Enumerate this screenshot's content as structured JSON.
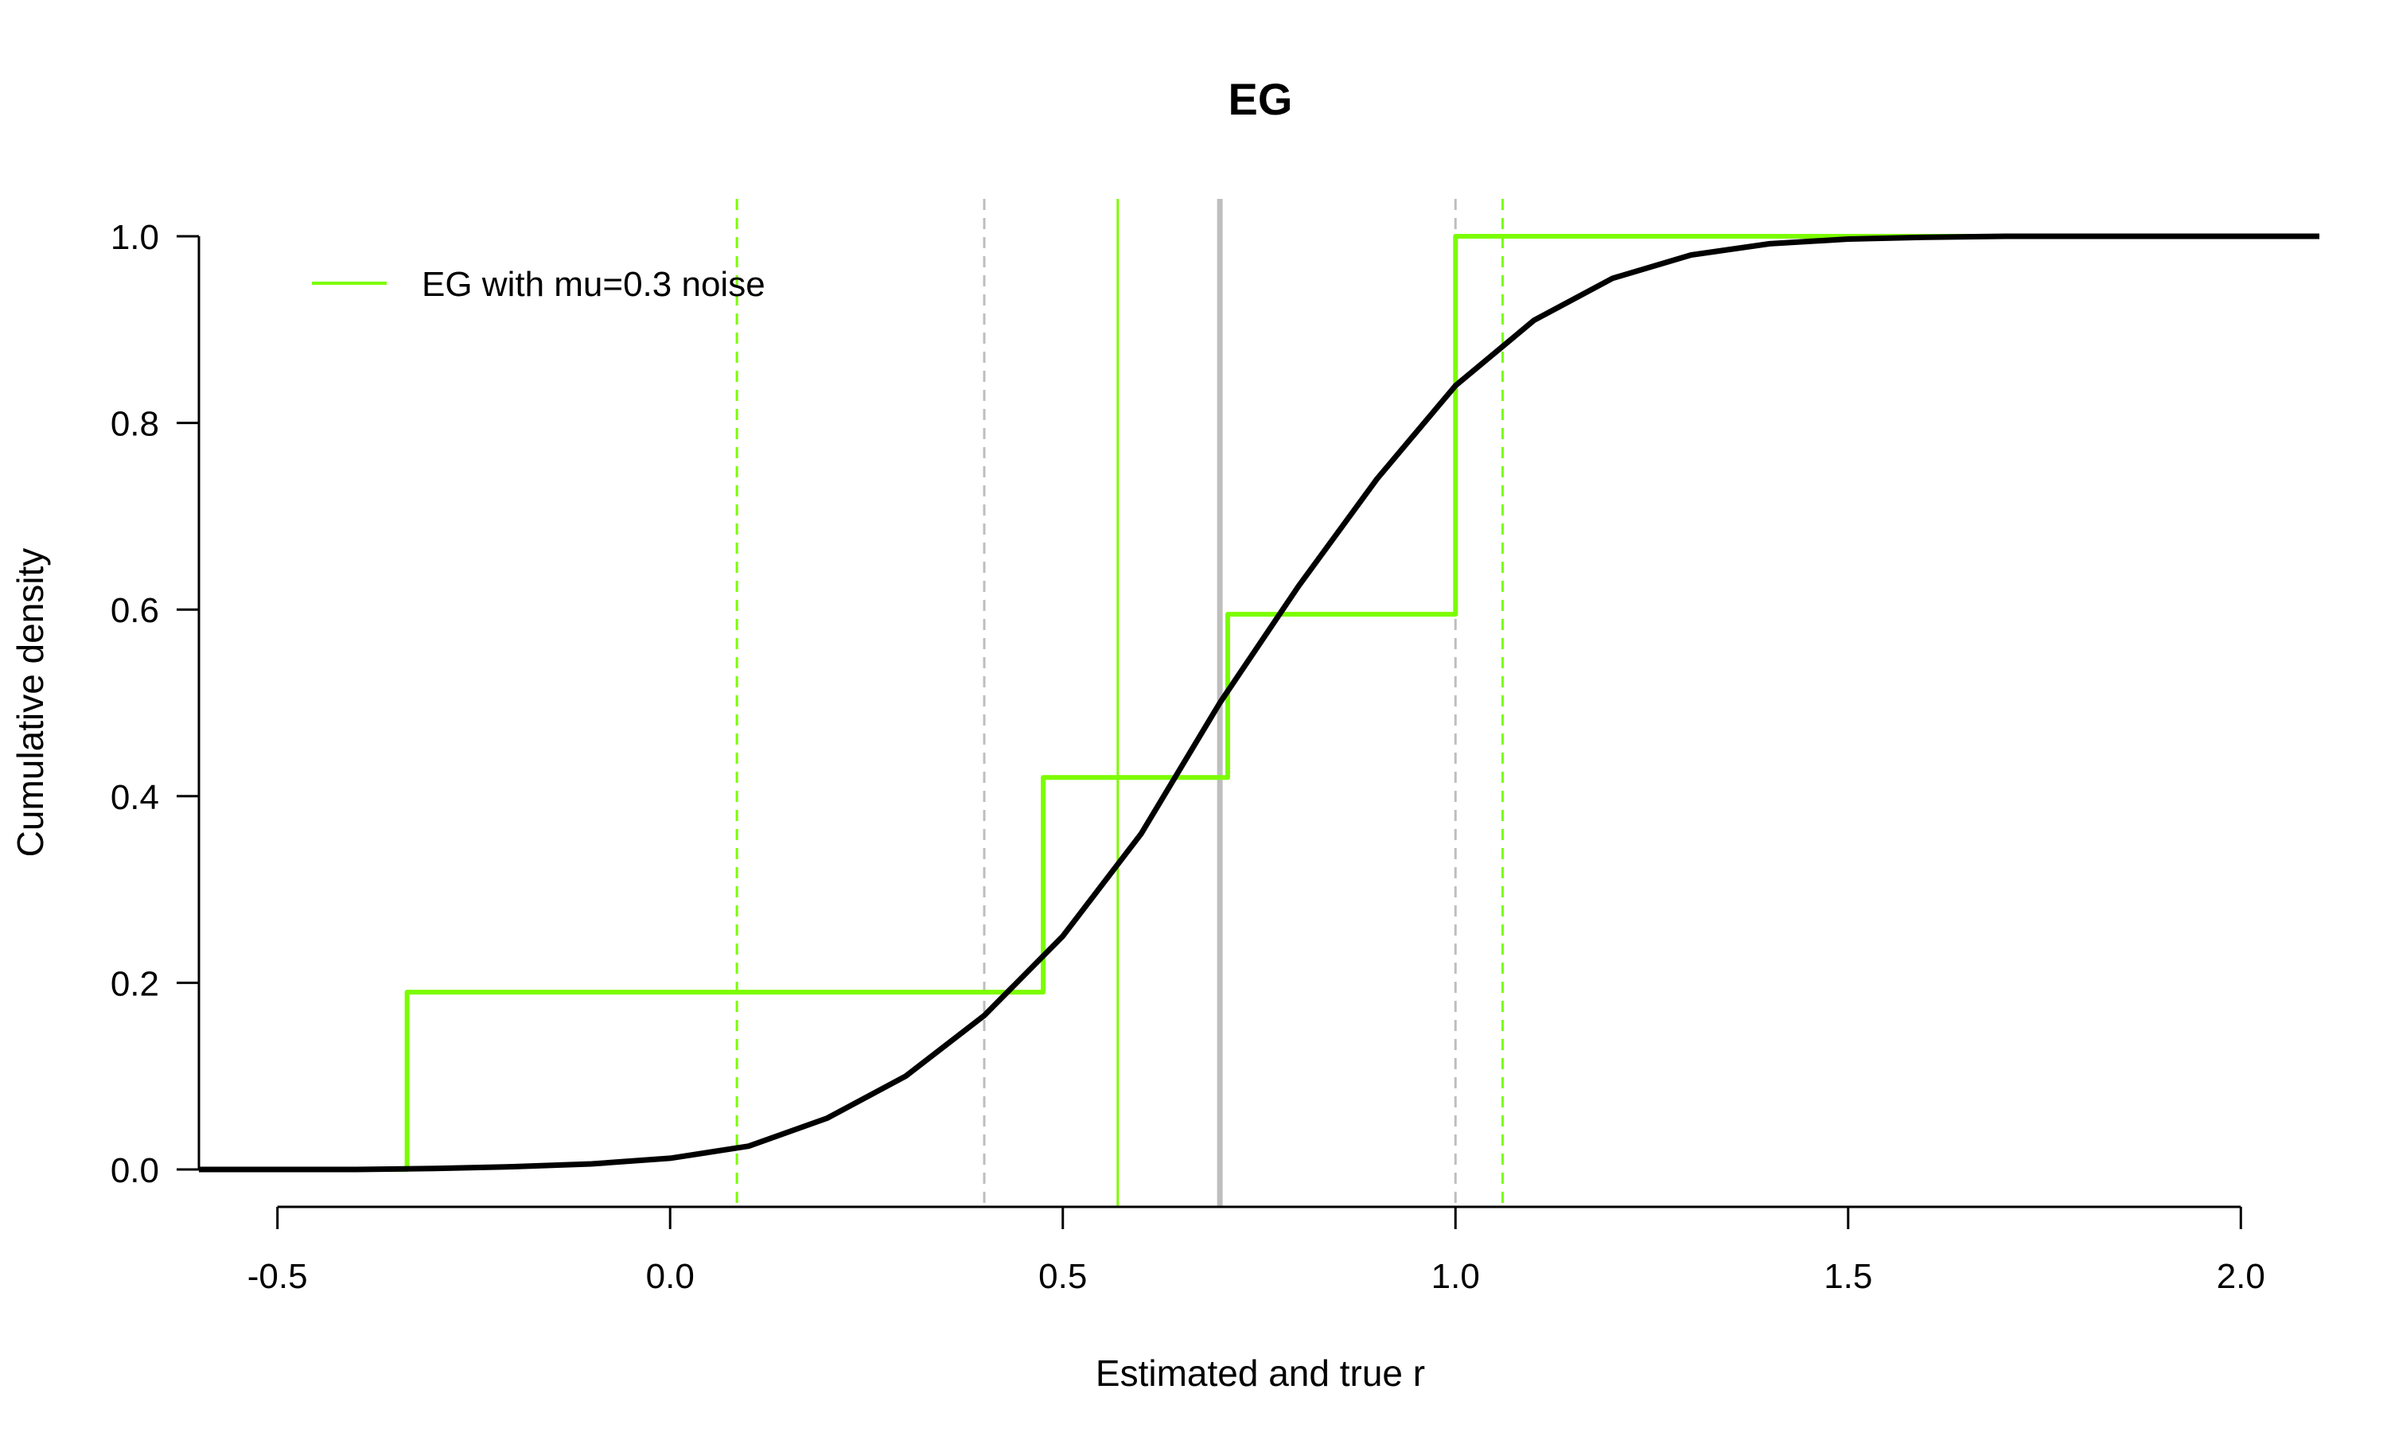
{
  "chart_data": {
    "type": "line",
    "title": "EG",
    "xlabel": "Estimated and true r",
    "ylabel": "Cumulative density",
    "xlim": [
      -0.6,
      2.1
    ],
    "ylim": [
      0,
      1
    ],
    "x_ticks": [
      "-0.5",
      "0.0",
      "0.5",
      "1.0",
      "1.5",
      "2.0"
    ],
    "y_ticks": [
      "0.0",
      "0.2",
      "0.4",
      "0.6",
      "0.8",
      "1.0"
    ],
    "grid": false,
    "legend_position": "top-left",
    "series": [
      {
        "name": "EG with mu=0.3 noise",
        "style": "step",
        "color": "#7cfc00",
        "x": [
          -0.6,
          -0.335,
          -0.335,
          0.475,
          0.475,
          0.71,
          0.71,
          1.0,
          1.0,
          2.1
        ],
        "y": [
          0,
          0,
          0.19,
          0.19,
          0.42,
          0.42,
          0.595,
          0.595,
          1.0,
          1.0
        ]
      },
      {
        "style": "curve",
        "color": "#000000",
        "x": [
          -0.6,
          -0.4,
          -0.3,
          -0.2,
          -0.1,
          0.0,
          0.1,
          0.2,
          0.3,
          0.4,
          0.5,
          0.6,
          0.7,
          0.8,
          0.9,
          1.0,
          1.1,
          1.2,
          1.3,
          1.4,
          1.5,
          1.6,
          1.7,
          2.1
        ],
        "y": [
          0.0,
          0.0,
          0.001,
          0.003,
          0.006,
          0.012,
          0.025,
          0.055,
          0.1,
          0.165,
          0.25,
          0.36,
          0.5,
          0.625,
          0.74,
          0.84,
          0.91,
          0.955,
          0.98,
          0.992,
          0.997,
          0.999,
          1.0,
          1.0
        ]
      }
    ],
    "vertical_lines": [
      {
        "x": 0.085,
        "color": "#7cfc00",
        "style": "dashed"
      },
      {
        "x": 0.4,
        "color": "#bebebe",
        "style": "dashed"
      },
      {
        "x": 0.57,
        "color": "#7cfc00",
        "style": "solid"
      },
      {
        "x": 0.7,
        "color": "#bebebe",
        "style": "solid-thick"
      },
      {
        "x": 1.0,
        "color": "#bebebe",
        "style": "dashed"
      },
      {
        "x": 1.06,
        "color": "#7cfc00",
        "style": "dashed"
      }
    ]
  }
}
